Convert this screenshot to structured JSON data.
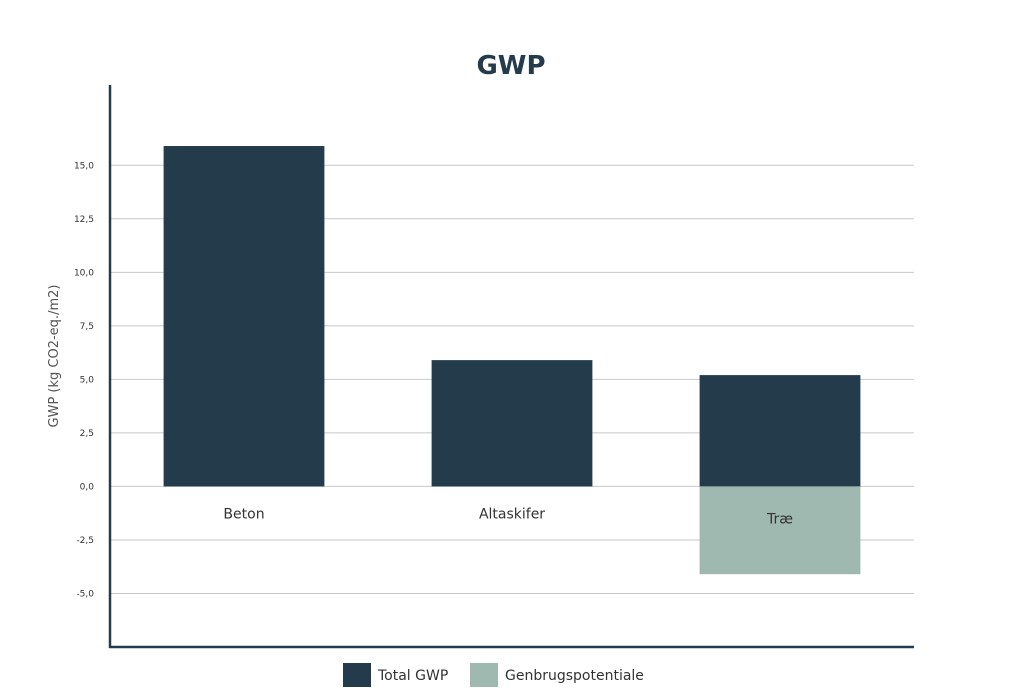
{
  "chart_data": {
    "type": "bar",
    "title": "GWP",
    "ylabel": "GWP (kg CO2-eq./m2)",
    "xlabel": "",
    "categories": [
      "Beton",
      "Altaskifer",
      "Træ"
    ],
    "series": [
      {
        "name": "Total GWP",
        "color": "#233b4b",
        "values": [
          15.9,
          5.9,
          5.2
        ]
      },
      {
        "name": "Genbrugspotentiale",
        "color": "#9fb9b1",
        "values": [
          0,
          0,
          -4.1
        ]
      }
    ],
    "ylim": [
      -7.5,
      18.75
    ],
    "yticks": [
      -5.0,
      -2.5,
      0.0,
      2.5,
      5.0,
      7.5,
      10.0,
      12.5,
      15.0
    ],
    "ytick_labels": [
      "-5,0",
      "-2,5",
      "0,0",
      "2,5",
      "5,0",
      "7,5",
      "10,0",
      "12,5",
      "15,0"
    ],
    "grid": true,
    "legend_position": "bottom-center"
  }
}
